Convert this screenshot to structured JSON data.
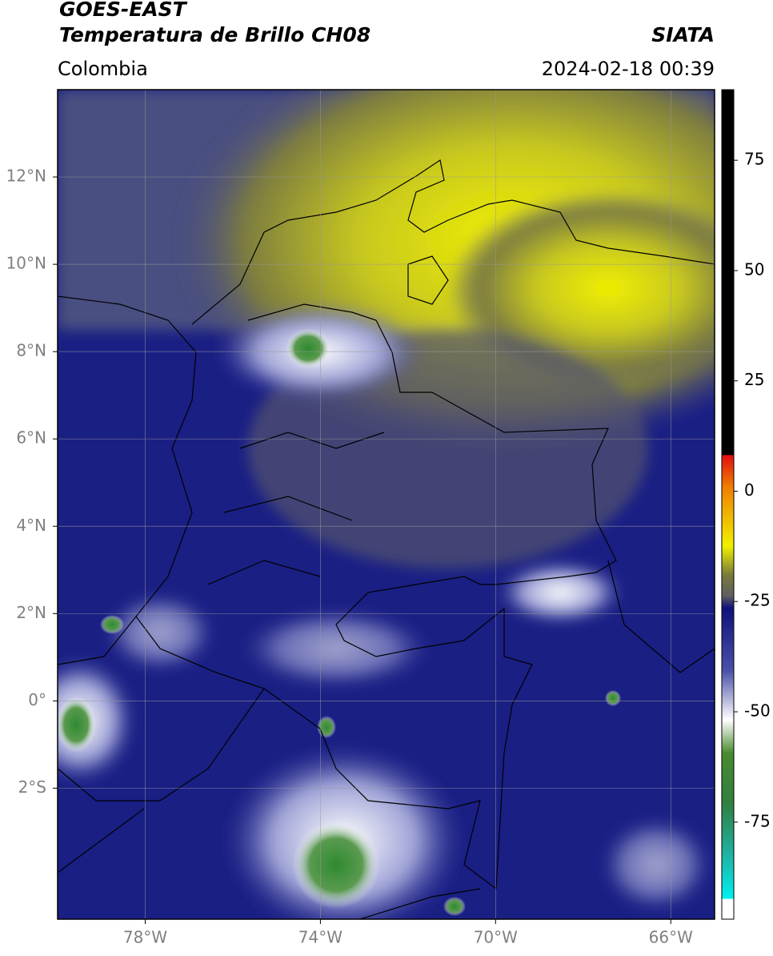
{
  "header": {
    "satellite": "GOES-EAST",
    "product": "Temperatura de Brillo CH08",
    "agency": "SIATA",
    "region": "Colombia",
    "datetime": "2024-02-18 00:39"
  },
  "map": {
    "xlim": [
      -80,
      -65
    ],
    "ylim": [
      -5,
      14
    ],
    "xticks": [
      {
        "value": -78,
        "label": "78°W"
      },
      {
        "value": -74,
        "label": "74°W"
      },
      {
        "value": -70,
        "label": "70°W"
      },
      {
        "value": -66,
        "label": "66°W"
      }
    ],
    "yticks": [
      {
        "value": 12,
        "label": "12°N"
      },
      {
        "value": 10,
        "label": "10°N"
      },
      {
        "value": 8,
        "label": "8°N"
      },
      {
        "value": 6,
        "label": "6°N"
      },
      {
        "value": 4,
        "label": "4°N"
      },
      {
        "value": 2,
        "label": "2°N"
      },
      {
        "value": 0,
        "label": "0°"
      },
      {
        "value": -2,
        "label": "2°S"
      }
    ]
  },
  "colorbar": {
    "lim": [
      -97,
      91
    ],
    "ticks": [
      75,
      50,
      25,
      0,
      -25,
      -50,
      -75
    ]
  }
}
